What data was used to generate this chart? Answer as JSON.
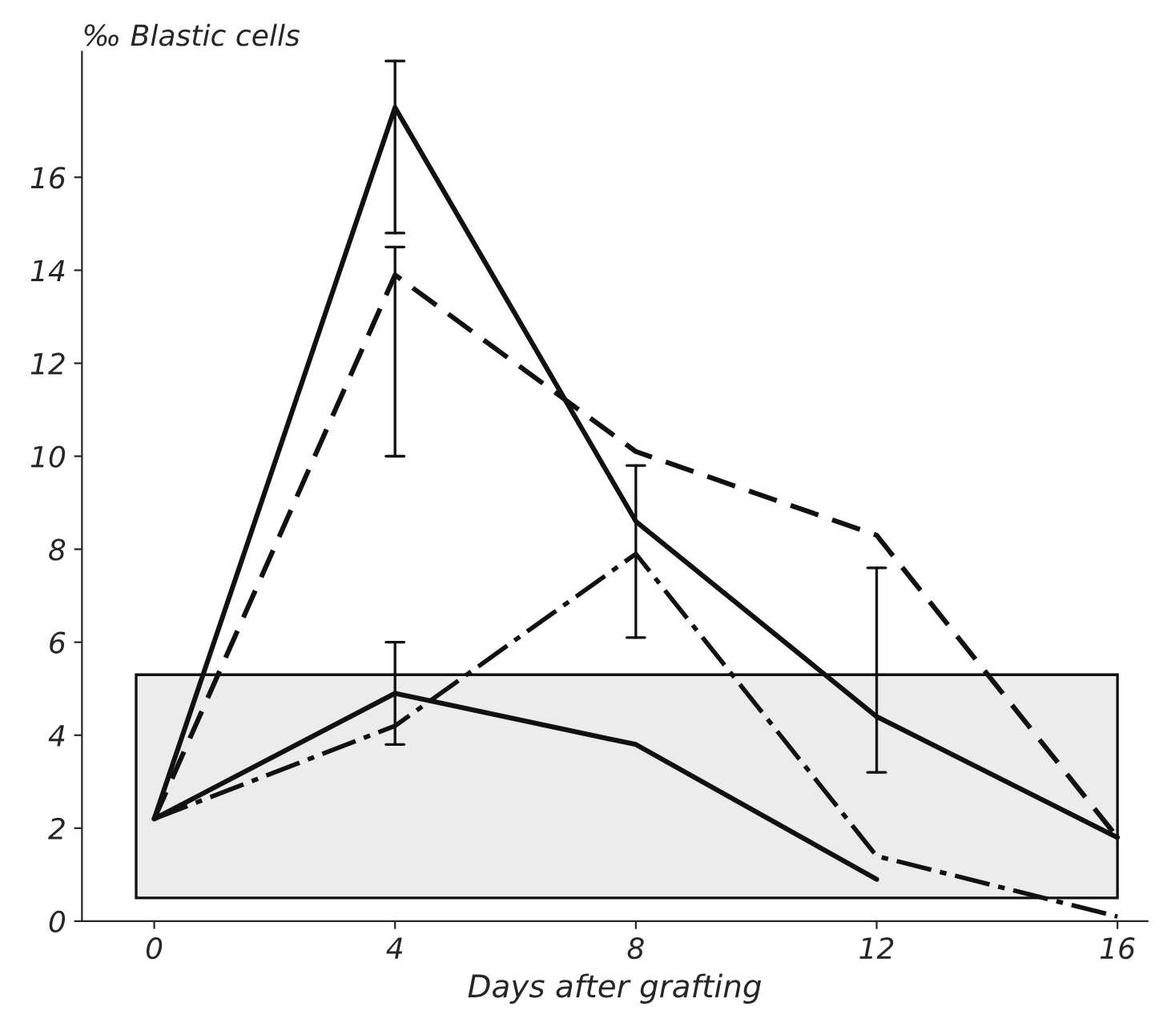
{
  "chart_data": {
    "type": "line",
    "xlabel": "Days after grafting",
    "ylabel": "‰ Blastic cells",
    "x": [
      0,
      4,
      8,
      12,
      16
    ],
    "series": [
      {
        "color": "#111111",
        "line_style": "solid",
        "values": [
          2.2,
          17.5,
          8.6,
          4.4,
          1.8
        ],
        "errors": [
          null,
          [
            14.8,
            18.5
          ],
          null,
          [
            3.2,
            7.6
          ],
          null
        ]
      },
      {
        "color": "#111111",
        "line_style": "dashed",
        "values": [
          2.2,
          13.9,
          10.1,
          8.3,
          1.8
        ],
        "errors": [
          null,
          [
            10.0,
            14.5
          ],
          null,
          null,
          null
        ]
      },
      {
        "color": "#111111",
        "line_style": "dashdot",
        "values": [
          2.2,
          4.2,
          7.9,
          1.4,
          0.1
        ],
        "errors": [
          null,
          null,
          [
            6.1,
            9.8
          ],
          null,
          null
        ]
      },
      {
        "color": "#111111",
        "line_style": "solid",
        "values": [
          2.2,
          4.9,
          3.8,
          0.9,
          null
        ],
        "errors": [
          null,
          [
            3.8,
            6.0
          ],
          null,
          null,
          null
        ]
      }
    ],
    "bands": [
      {
        "axis": "y",
        "from": 0.5,
        "to": 5.3,
        "color": "#111111"
      }
    ],
    "xlim": [
      -1.2,
      16.5
    ],
    "ylim": [
      0,
      18.7
    ],
    "xticks": [
      0,
      4,
      8,
      12,
      16
    ],
    "yticks": [
      0,
      2,
      4,
      6,
      8,
      10,
      12,
      14,
      16
    ],
    "grid": false,
    "legend": false,
    "marker": "none"
  }
}
